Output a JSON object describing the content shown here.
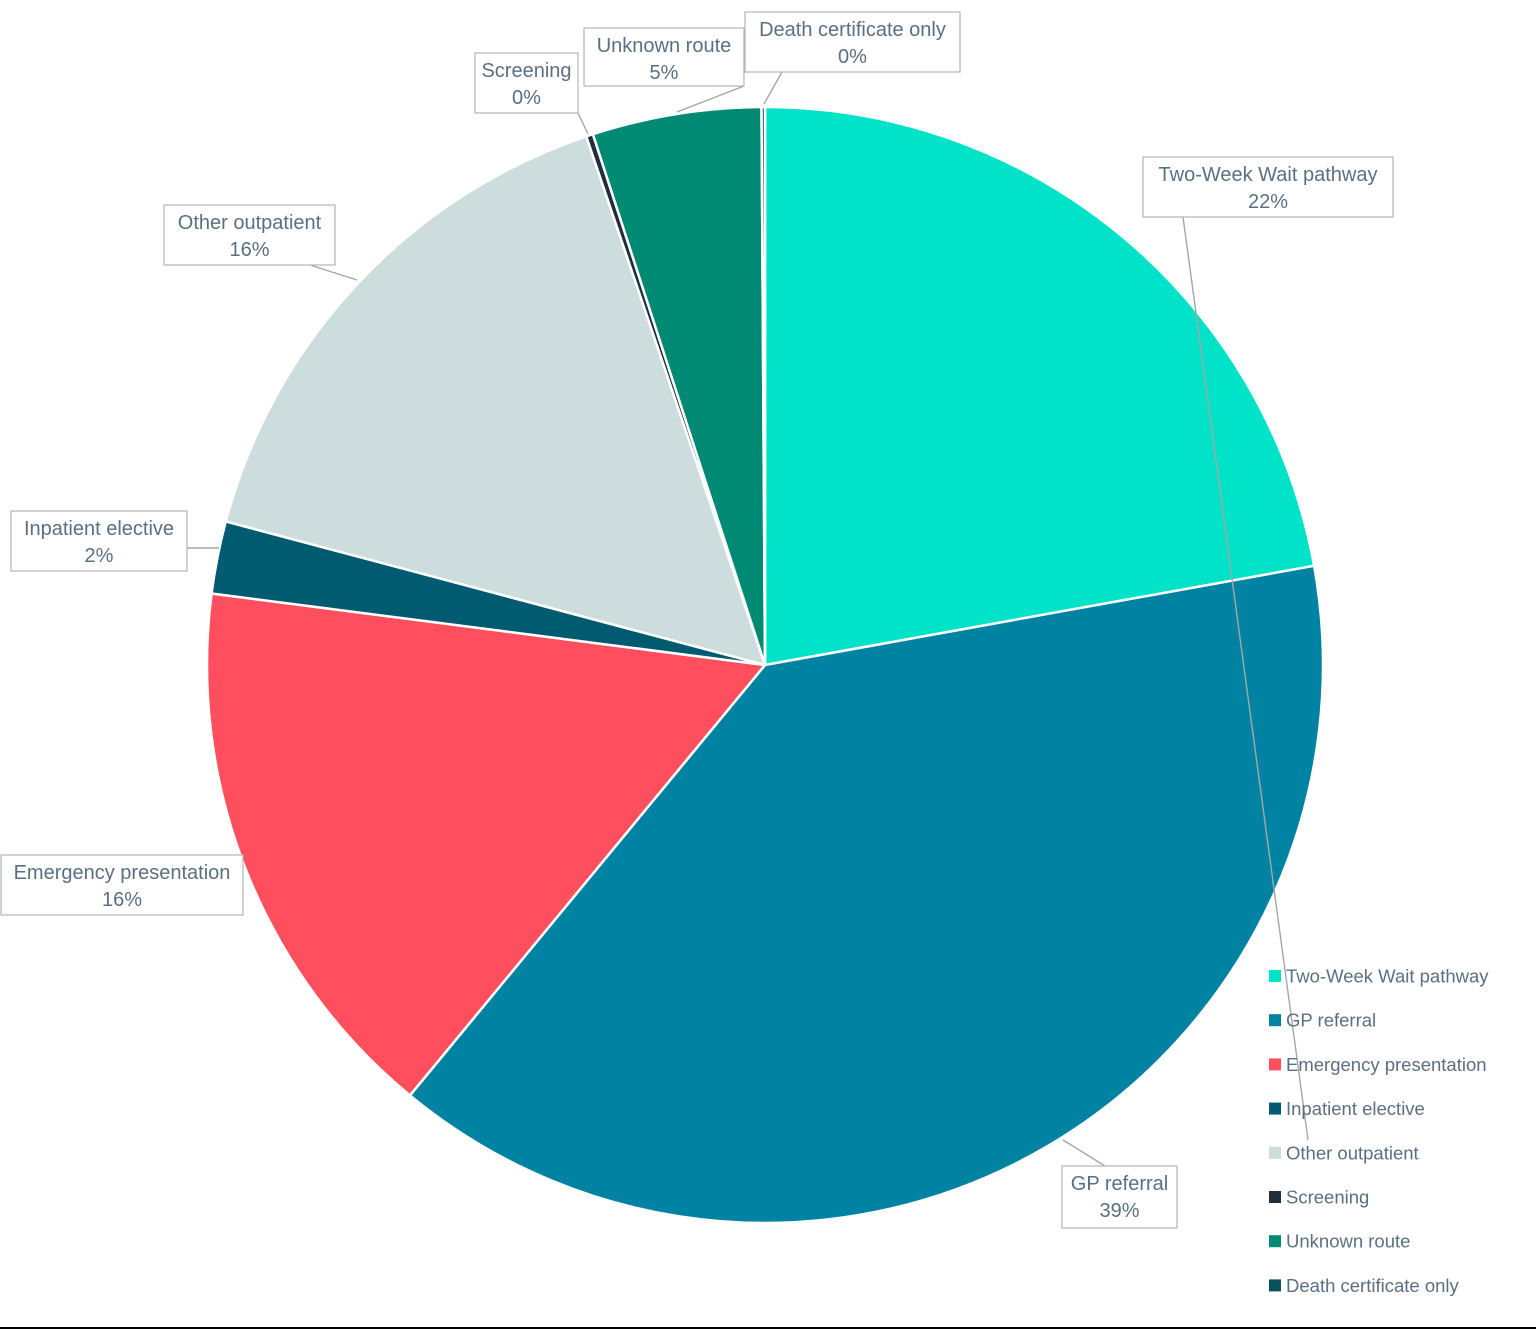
{
  "chart_data": {
    "type": "pie",
    "title": "",
    "start_angle_deg": 0,
    "direction": "clockwise",
    "slices": [
      {
        "label": "Two-Week Wait pathway",
        "value": 22.2,
        "pct_label": "22%",
        "color": "#00e3c8"
      },
      {
        "label": "GP referral",
        "value": 38.9,
        "pct_label": "39%",
        "color": "#0083a3"
      },
      {
        "label": "Emergency presentation",
        "value": 16.1,
        "pct_label": "16%",
        "color": "#ff4f5e"
      },
      {
        "label": "Inpatient elective",
        "value": 2.1,
        "pct_label": "2%",
        "color": "#005a70"
      },
      {
        "label": "Other outpatient",
        "value": 15.7,
        "pct_label": "16%",
        "color": "#cddcdc"
      },
      {
        "label": "Screening",
        "value": 0.2,
        "pct_label": "0%",
        "color": "#1f2e3a"
      },
      {
        "label": "Unknown route",
        "value": 4.9,
        "pct_label": "5%",
        "color": "#008a73"
      },
      {
        "label": "Death certificate only",
        "value": 0.1,
        "pct_label": "0%",
        "color": "#0c4f5e"
      }
    ],
    "legend": {
      "position": "bottom-right",
      "entries": [
        "Two-Week Wait pathway",
        "GP referral",
        "Emergency presentation",
        "Inpatient elective",
        "Other outpatient",
        "Screening",
        "Unknown route",
        "Death certificate only"
      ]
    }
  }
}
